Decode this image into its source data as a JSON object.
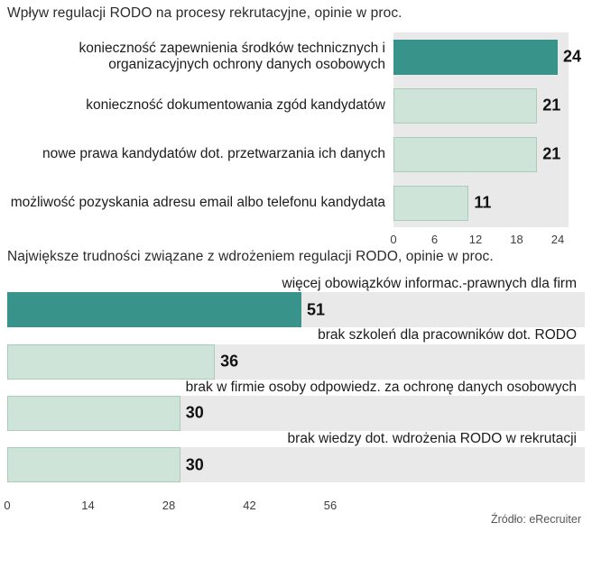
{
  "page": {
    "source": "Źródło: eRecruiter"
  },
  "colors": {
    "bar_primary": "#38948a",
    "bar_secondary": "#cfe4d9",
    "bar_secondary_border": "#a9cdbd",
    "plot_background": "#e9e9e9",
    "text": "#1c1c1c"
  },
  "chart_data": [
    {
      "type": "bar",
      "orientation": "horizontal",
      "title": "Wpływ regulacji RODO na procesy rekrutacyjne, opinie w proc.",
      "categories": [
        "konieczność zapewnienia środków technicznych i organizacyjnych ochrony danych osobowych",
        "konieczność dokumentowania zgód kandydatów",
        "nowe prawa kandydatów dot. przetwarzania ich danych",
        "możliwość pozyskania adresu email albo telefonu kandydata"
      ],
      "values": [
        24,
        21,
        21,
        11
      ],
      "xlim": [
        0,
        24
      ],
      "ticks": [
        0,
        6,
        12,
        18,
        24
      ],
      "highlight_index": 0,
      "grid": false,
      "legend": false
    },
    {
      "type": "bar",
      "orientation": "horizontal",
      "title": "Największe trudności związane z wdrożeniem regulacji RODO, opinie w proc.",
      "categories": [
        "więcej obowiązków informac.-prawnych dla firm",
        "brak szkoleń dla pracowników dot. RODO",
        "brak w firmie osoby odpowiedz. za ochronę danych osobowych",
        "brak wiedzy dot. wdrożenia RODO w rekrutacji"
      ],
      "values": [
        51,
        36,
        30,
        30
      ],
      "xlim": [
        0,
        56
      ],
      "ticks": [
        0,
        14,
        28,
        42,
        56
      ],
      "highlight_index": 0,
      "grid": false,
      "legend": false
    }
  ]
}
